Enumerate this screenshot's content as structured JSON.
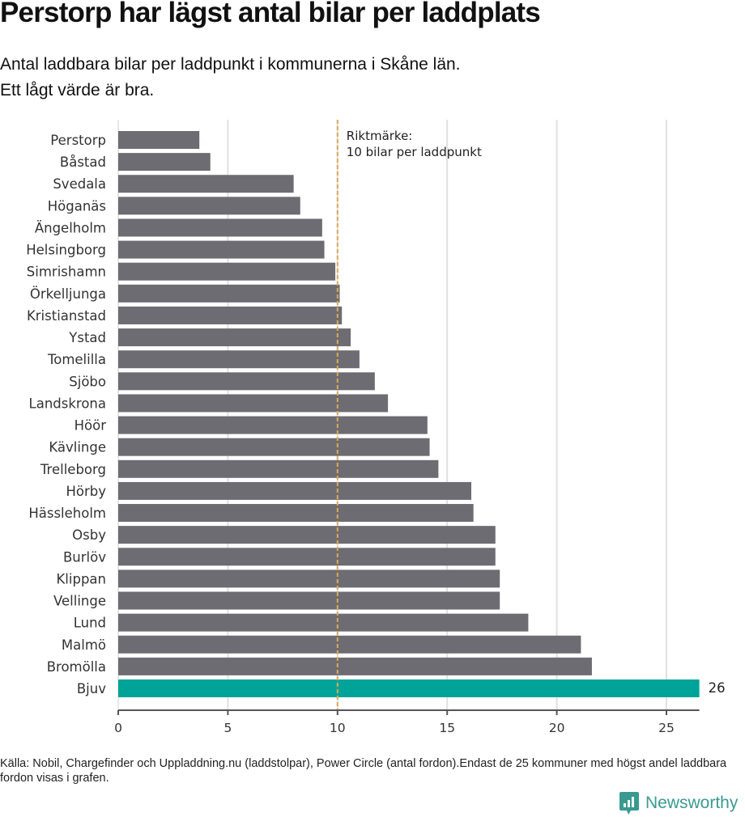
{
  "header": {
    "title": "Perstorp har lägst antal bilar per laddplats",
    "subtitle_line1": "Antal laddbara bilar per laddpunkt i kommunerna i Skåne län.",
    "subtitle_line2": "Ett lågt värde är bra."
  },
  "footer": {
    "source": "Källa: Nobil, Chargefinder och Uppladdning.nu (laddstolpar), Power Circle (antal fordon).Endast de 25 kommuner med högst andel laddbara fordon visas i grafen.",
    "brand": "Newsworthy",
    "brand_icon": "newsworthy-chart-bubble-icon"
  },
  "colors": {
    "bar": "#6d6c72",
    "highlight": "#00a398",
    "reference_line": "#ddaa55",
    "grid": "#e0e0e0",
    "axis": "#555555",
    "brand": "#3a9a8f"
  },
  "chart_data": {
    "type": "bar",
    "orientation": "horizontal",
    "title": "Perstorp har lägst antal bilar per laddplats",
    "xlabel": "",
    "ylabel": "",
    "xlim": [
      0,
      26.5
    ],
    "xticks": [
      0,
      5,
      10,
      15,
      20,
      25
    ],
    "grid": true,
    "categories": [
      "Perstorp",
      "Båstad",
      "Svedala",
      "Höganäs",
      "Ängelholm",
      "Helsingborg",
      "Simrishamn",
      "Örkelljunga",
      "Kristianstad",
      "Ystad",
      "Tomelilla",
      "Sjöbo",
      "Landskrona",
      "Höör",
      "Kävlinge",
      "Trelleborg",
      "Hörby",
      "Hässleholm",
      "Osby",
      "Burlöv",
      "Klippan",
      "Vellinge",
      "Lund",
      "Malmö",
      "Bromölla",
      "Bjuv"
    ],
    "values": [
      3.7,
      4.2,
      8.0,
      8.3,
      9.3,
      9.4,
      9.9,
      10.1,
      10.2,
      10.6,
      11.0,
      11.7,
      12.3,
      14.1,
      14.2,
      14.6,
      16.1,
      16.2,
      17.2,
      17.2,
      17.4,
      17.4,
      18.7,
      21.1,
      21.6,
      26.5
    ],
    "highlight": "Bjuv",
    "data_labels": [
      {
        "category": "Bjuv",
        "label": "26"
      }
    ],
    "reference_line": {
      "value": 10,
      "label_line1": "Riktmärke:",
      "label_line2": "10 bilar per laddpunkt"
    }
  }
}
